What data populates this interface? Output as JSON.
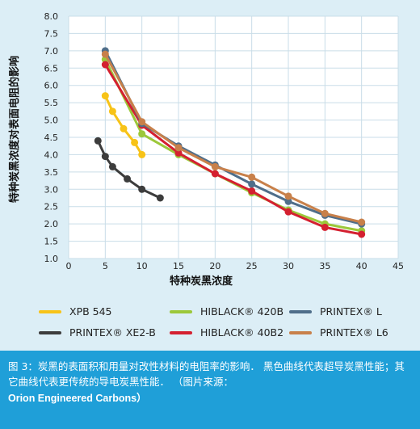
{
  "chart_data": {
    "type": "line",
    "title": "",
    "xlabel": "特种炭黑浓度",
    "ylabel": "特种炭黑浓度对表面电阻的影响",
    "xlim": [
      0,
      45
    ],
    "ylim": [
      1.0,
      8.0
    ],
    "x_ticks": [
      0,
      5,
      10,
      15,
      20,
      25,
      30,
      35,
      40,
      45
    ],
    "y_ticks": [
      "1.0",
      "1.5",
      "2.0",
      "2.5",
      "3.0",
      "3.5",
      "4.0",
      "4.5",
      "5.0",
      "5.5",
      "6.0",
      "6.5",
      "7.0",
      "7.5",
      "8.0"
    ],
    "grid": true,
    "legend_position": "bottom",
    "series": [
      {
        "name": "XPB 545",
        "color": "#f7c318",
        "x": [
          5,
          6,
          7.5,
          9,
          10
        ],
        "y": [
          5.7,
          5.25,
          4.75,
          4.35,
          4.0
        ]
      },
      {
        "name": "PRINTEX® XE2-B",
        "color": "#3c3c3c",
        "x": [
          4,
          5,
          6,
          8,
          10,
          12.5
        ],
        "y": [
          4.4,
          3.95,
          3.65,
          3.3,
          3.0,
          2.75
        ]
      },
      {
        "name": "HIBLACK® 420B",
        "color": "#9cc83a",
        "x": [
          5,
          10,
          15,
          20,
          25,
          30,
          35,
          40
        ],
        "y": [
          6.75,
          4.6,
          4.0,
          3.45,
          2.9,
          2.4,
          2.0,
          1.8
        ]
      },
      {
        "name": "HIBLACK® 40B2",
        "color": "#d42030",
        "x": [
          5,
          10,
          15,
          20,
          25,
          30,
          35,
          40
        ],
        "y": [
          6.6,
          4.85,
          4.05,
          3.45,
          2.95,
          2.35,
          1.9,
          1.7
        ]
      },
      {
        "name": "PRINTEX® L",
        "color": "#4f6e8a",
        "x": [
          5,
          10,
          15,
          20,
          25,
          30,
          35,
          40
        ],
        "y": [
          7.0,
          4.9,
          4.25,
          3.7,
          3.15,
          2.65,
          2.25,
          2.0
        ]
      },
      {
        "name": "PRINTEX® L6",
        "color": "#c8804a",
        "x": [
          5,
          10,
          15,
          20,
          25,
          30,
          35,
          40
        ],
        "y": [
          6.9,
          4.95,
          4.2,
          3.65,
          3.35,
          2.8,
          2.3,
          2.05
        ]
      }
    ]
  },
  "legend": [
    {
      "label": "XPB 545",
      "color": "#f7c318"
    },
    {
      "label": "HIBLACK® 420B",
      "color": "#9cc83a"
    },
    {
      "label": "PRINTEX® L",
      "color": "#4f6e8a"
    },
    {
      "label": "PRINTEX® XE2-B",
      "color": "#3c3c3c"
    },
    {
      "label": "HIBLACK® 40B2",
      "color": "#d42030"
    },
    {
      "label": "PRINTEX® L6",
      "color": "#c8804a"
    }
  ],
  "caption": {
    "text": "图 3：炭黑的表面积和用量对改性材料的电阻率的影响． 黑色曲线代表超导炭黑性能；其它曲线代表更传统的导电炭黑性能． （图片来源：",
    "source": "Orion Engineered Carbons）"
  }
}
